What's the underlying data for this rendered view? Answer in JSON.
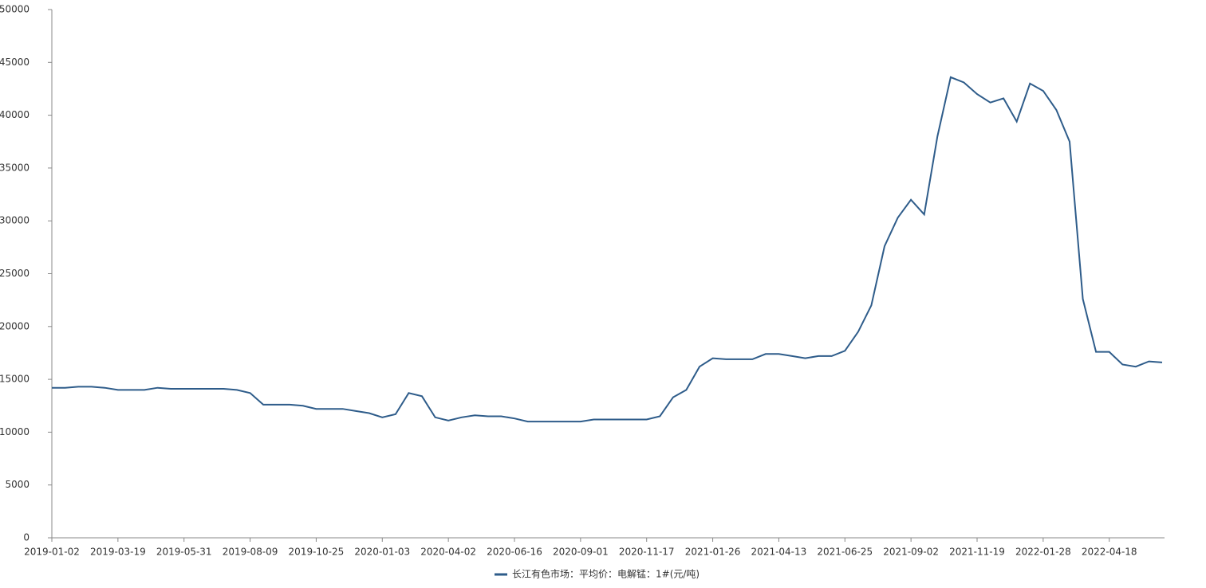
{
  "chart_data": {
    "type": "line",
    "categories": [
      "2019-01-02",
      null,
      null,
      null,
      null,
      "2019-03-19",
      null,
      null,
      null,
      null,
      "2019-05-31",
      null,
      null,
      null,
      null,
      "2019-08-09",
      null,
      null,
      null,
      null,
      "2019-10-25",
      null,
      null,
      null,
      null,
      "2020-01-03",
      null,
      null,
      null,
      null,
      "2020-04-02",
      null,
      null,
      null,
      null,
      "2020-06-16",
      null,
      null,
      null,
      null,
      "2020-09-01",
      null,
      null,
      null,
      null,
      "2020-11-17",
      null,
      null,
      null,
      null,
      "2021-01-26",
      null,
      null,
      null,
      null,
      "2021-04-13",
      null,
      null,
      null,
      null,
      "2021-06-25",
      null,
      null,
      null,
      null,
      "2021-09-02",
      null,
      null,
      null,
      null,
      "2021-11-19",
      null,
      null,
      null,
      null,
      "2022-01-28",
      null,
      null,
      null,
      null,
      "2022-04-18",
      null,
      null,
      null,
      null
    ],
    "series": [
      {
        "name": "长江有色市场：平均价：电解锰：1#(元/吨)",
        "color": "#2e5c8a",
        "values": [
          14200,
          14200,
          14300,
          14300,
          14200,
          14000,
          14000,
          14000,
          14200,
          14100,
          14100,
          14100,
          14100,
          14100,
          14000,
          13700,
          12600,
          12600,
          12600,
          12500,
          12200,
          12200,
          12200,
          12000,
          11800,
          11400,
          11700,
          13700,
          13400,
          11400,
          11100,
          11400,
          11600,
          11500,
          11500,
          11300,
          11000,
          11000,
          11000,
          11000,
          11000,
          11200,
          11200,
          11200,
          11200,
          11200,
          11500,
          13300,
          14000,
          16200,
          17000,
          16900,
          16900,
          16900,
          17400,
          17400,
          17200,
          17000,
          17200,
          17200,
          17700,
          19500,
          22000,
          27600,
          30300,
          32000,
          30600,
          38000,
          43600,
          43100,
          42000,
          41200,
          41600,
          39400,
          43000,
          42300,
          40500,
          37500,
          22600,
          17600,
          17600,
          16400,
          16200,
          16700,
          16600
        ]
      }
    ],
    "ylim": [
      0,
      50000
    ],
    "yticks": [
      0,
      5000,
      10000,
      15000,
      20000,
      25000,
      30000,
      35000,
      40000,
      45000,
      50000
    ],
    "grid": false
  }
}
